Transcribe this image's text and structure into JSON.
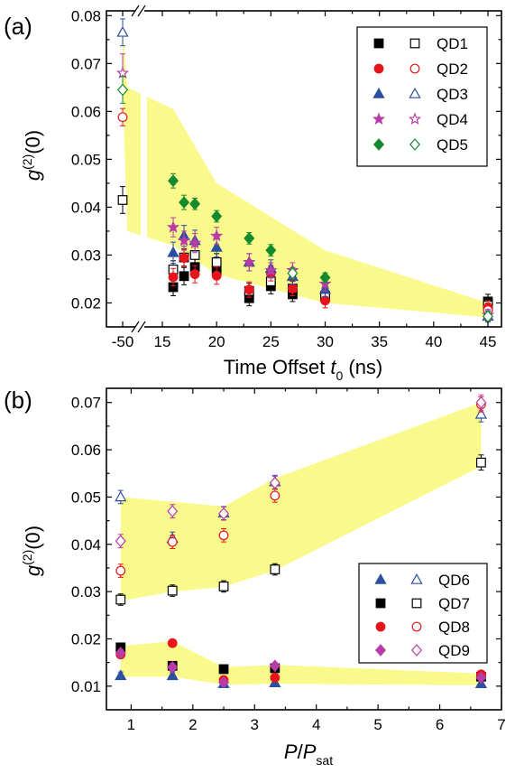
{
  "panels": [
    {
      "panel_label": "(a)",
      "xlabel_main": "Time Offset ",
      "xlabel_var": "t",
      "xlabel_sub": "0",
      "xlabel_unit": " (ns)",
      "ylabel_main": "g",
      "ylabel_sup": "(2)",
      "ylabel_tail": "(0)"
    },
    {
      "panel_label": "(b)",
      "xlabel_var": "P",
      "xlabel_slash": "/",
      "xlabel_var2": "P",
      "xlabel_sub": "sat",
      "ylabel_main": "g",
      "ylabel_sup": "(2)",
      "ylabel_tail": "(0)"
    }
  ],
  "colors": {
    "QD1": "#000000",
    "QD2": "#e8141c",
    "QD3": "#2c4fa0",
    "QD4": "#b83ca6",
    "QD5": "#138a2e",
    "QD6": "#2c4fa0",
    "QD7": "#000000",
    "QD8": "#e8141c",
    "QD9": "#b83ca6",
    "band": "#fafa8c"
  },
  "chart_data": [
    {
      "type": "scatter",
      "panel": "(a)",
      "xlabel": "Time Offset t0 (ns)",
      "ylabel": "g(2)(0)",
      "x_axis_break": "between -50 and 15",
      "xlim": [
        13,
        47
      ],
      "ylim": [
        0.015,
        0.081
      ],
      "xticks": [
        -50,
        15,
        20,
        25,
        30,
        35,
        40,
        45
      ],
      "yticks": [
        0.02,
        0.03,
        0.04,
        0.05,
        0.06,
        0.07,
        0.08
      ],
      "legend": {
        "position": "top-right",
        "columns": [
          "filled",
          "open"
        ]
      },
      "shaded_band": {
        "upper": [
          [
            -50,
            0.077
          ],
          [
            -48,
            0.065
          ],
          [
            16,
            0.0605
          ],
          [
            20,
            0.045
          ],
          [
            30,
            0.031
          ],
          [
            45,
            0.02
          ]
        ],
        "lower": [
          [
            -50,
            0.064
          ],
          [
            -48,
            0.035
          ],
          [
            16,
            0.032
          ],
          [
            20,
            0.026
          ],
          [
            30,
            0.02
          ],
          [
            45,
            0.017
          ]
        ]
      },
      "series": [
        {
          "name": "QD1",
          "marker": "square",
          "filled": true,
          "x": [
            16,
            17,
            18,
            20,
            23,
            25,
            27,
            30,
            45
          ],
          "y": [
            0.0233,
            0.0256,
            0.0275,
            0.0268,
            0.021,
            0.0235,
            0.0218,
            0.0213,
            0.0203
          ],
          "err": [
            0.0018,
            0.0018,
            0.0018,
            0.0018,
            0.0016,
            0.0016,
            0.0015,
            0.0015,
            0.0015
          ]
        },
        {
          "name": "QD1",
          "marker": "square",
          "filled": false,
          "x": [
            -50,
            16,
            17,
            18,
            20,
            23,
            25,
            27,
            30,
            45
          ],
          "y": [
            0.0415,
            0.027,
            0.0295,
            0.03,
            0.0285,
            0.0225,
            0.0245,
            0.023,
            0.0215,
            0.0195
          ],
          "err": [
            0.0028,
            0.0018,
            0.0018,
            0.0018,
            0.0018,
            0.0016,
            0.0016,
            0.0015,
            0.0015,
            0.0015
          ]
        },
        {
          "name": "QD2",
          "marker": "circle",
          "filled": true,
          "x": [
            16,
            17,
            18,
            20,
            23,
            25,
            27,
            30,
            45
          ],
          "y": [
            0.0254,
            0.0294,
            0.026,
            0.0257,
            0.0228,
            0.0262,
            0.023,
            0.0205,
            0.019
          ],
          "err": [
            0.0018,
            0.0018,
            0.0018,
            0.0018,
            0.0016,
            0.0016,
            0.0015,
            0.0015,
            0.0015
          ]
        },
        {
          "name": "QD2",
          "marker": "circle",
          "filled": false,
          "x": [
            -50,
            45
          ],
          "y": [
            0.0588,
            0.0185
          ],
          "err": [
            0.0018,
            0.0015
          ]
        },
        {
          "name": "QD3",
          "marker": "triangle",
          "filled": true,
          "x": [
            16,
            17,
            18,
            20,
            23,
            25,
            27,
            30,
            45
          ],
          "y": [
            0.0305,
            0.034,
            0.033,
            0.0316,
            0.0285,
            0.0272,
            0.0255,
            0.0228,
            0.0172
          ],
          "err": [
            0.0022,
            0.0022,
            0.0022,
            0.002,
            0.0018,
            0.0018,
            0.0016,
            0.0015,
            0.0012
          ]
        },
        {
          "name": "QD3",
          "marker": "triangle",
          "filled": false,
          "x": [
            -50
          ],
          "y": [
            0.0765
          ],
          "err": [
            0.0028
          ]
        },
        {
          "name": "QD4",
          "marker": "star",
          "filled": true,
          "x": [
            16,
            17,
            18,
            20,
            23,
            25,
            27,
            30,
            45
          ],
          "y": [
            0.0358,
            0.033,
            0.0325,
            0.034,
            0.0285,
            0.0268,
            0.0268,
            0.024,
            0.0175
          ],
          "err": [
            0.002,
            0.002,
            0.002,
            0.0018,
            0.0018,
            0.0016,
            0.0016,
            0.0015,
            0.0012
          ]
        },
        {
          "name": "QD4",
          "marker": "star",
          "filled": false,
          "x": [
            -50
          ],
          "y": [
            0.068
          ],
          "err": [
            0.004
          ]
        },
        {
          "name": "QD5",
          "marker": "diamond",
          "filled": true,
          "x": [
            16,
            17,
            18,
            20,
            23,
            25,
            30
          ],
          "y": [
            0.0455,
            0.041,
            0.0407,
            0.0381,
            0.0335,
            0.031,
            0.0253
          ],
          "err": [
            0.0015,
            0.0015,
            0.0012,
            0.0012,
            0.0012,
            0.0012,
            0.001
          ]
        },
        {
          "name": "QD5",
          "marker": "diamond",
          "filled": false,
          "x": [
            -50,
            27,
            45
          ],
          "y": [
            0.0645,
            0.0262,
            0.0172
          ],
          "err": [
            0.0028,
            0.0012,
            0.001
          ]
        }
      ]
    },
    {
      "type": "scatter",
      "panel": "(b)",
      "xlabel": "P/Psat",
      "ylabel": "g(2)(0)",
      "xlim": [
        0.6,
        7
      ],
      "ylim": [
        0.005,
        0.073
      ],
      "xticks": [
        1,
        2,
        3,
        4,
        5,
        6,
        7
      ],
      "yticks": [
        0.01,
        0.02,
        0.03,
        0.04,
        0.05,
        0.06,
        0.07
      ],
      "legend": {
        "position": "bottom-right",
        "columns": [
          "filled",
          "open"
        ]
      },
      "shaded_band": {
        "upper": [
          [
            0.83,
            0.05
          ],
          [
            1.67,
            0.049
          ],
          [
            2.5,
            0.048
          ],
          [
            3.33,
            0.054
          ],
          [
            6.67,
            0.07
          ]
        ],
        "lower": [
          [
            0.83,
            0.028
          ],
          [
            1.67,
            0.03
          ],
          [
            2.5,
            0.031
          ],
          [
            3.33,
            0.0345
          ],
          [
            6.67,
            0.0565
          ]
        ]
      },
      "shaded_band_2": {
        "upper": [
          [
            0.83,
            0.0185
          ],
          [
            1.67,
            0.0195
          ],
          [
            2.5,
            0.014
          ],
          [
            3.33,
            0.0145
          ],
          [
            6.67,
            0.0127
          ]
        ],
        "lower": [
          [
            0.83,
            0.012
          ],
          [
            1.67,
            0.012
          ],
          [
            2.5,
            0.0103
          ],
          [
            3.33,
            0.0105
          ],
          [
            6.67,
            0.0102
          ]
        ]
      },
      "series": [
        {
          "name": "QD6",
          "marker": "triangle",
          "filled": true,
          "x": [
            0.83,
            1.67,
            2.5,
            3.33,
            6.67
          ],
          "y": [
            0.0122,
            0.0122,
            0.0105,
            0.0107,
            0.0105
          ],
          "err": [
            0.0008,
            0.0008,
            0.0006,
            0.0006,
            0.0006
          ]
        },
        {
          "name": "QD6",
          "marker": "triangle",
          "filled": false,
          "x": [
            0.83,
            1.67,
            2.5,
            3.33,
            6.67
          ],
          "y": [
            0.05,
            0.0412,
            0.0466,
            0.0532,
            0.0675
          ],
          "err": [
            0.0014,
            0.0014,
            0.0014,
            0.0014,
            0.0016
          ]
        },
        {
          "name": "QD7",
          "marker": "square",
          "filled": true,
          "x": [
            0.83,
            1.67,
            2.5,
            3.33,
            6.67
          ],
          "y": [
            0.0182,
            0.0143,
            0.0136,
            0.0138,
            0.012
          ],
          "err": [
            0.0008,
            0.0008,
            0.0006,
            0.0006,
            0.0006
          ]
        },
        {
          "name": "QD7",
          "marker": "square",
          "filled": false,
          "x": [
            0.83,
            1.67,
            2.5,
            3.33,
            6.67
          ],
          "y": [
            0.0283,
            0.0302,
            0.0311,
            0.0347,
            0.0573
          ],
          "err": [
            0.0012,
            0.0012,
            0.0012,
            0.0012,
            0.0016
          ]
        },
        {
          "name": "QD8",
          "marker": "circle",
          "filled": true,
          "x": [
            0.83,
            1.67,
            2.5,
            3.33,
            6.67
          ],
          "y": [
            0.0167,
            0.0191,
            0.0113,
            0.0118,
            0.0125
          ],
          "err": [
            0.0008,
            0.0008,
            0.0006,
            0.0006,
            0.0006
          ]
        },
        {
          "name": "QD8",
          "marker": "circle",
          "filled": false,
          "x": [
            0.83,
            1.67,
            2.5,
            3.33,
            6.67
          ],
          "y": [
            0.0344,
            0.0405,
            0.0419,
            0.0503,
            0.0696
          ],
          "err": [
            0.0014,
            0.0014,
            0.0014,
            0.0014,
            0.0016
          ]
        },
        {
          "name": "QD9",
          "marker": "diamond",
          "filled": true,
          "x": [
            0.83,
            1.67,
            2.5,
            3.33,
            6.67
          ],
          "y": [
            0.017,
            0.014,
            0.0108,
            0.0143,
            0.0118
          ],
          "err": [
            0.0008,
            0.0008,
            0.0006,
            0.0006,
            0.0006
          ]
        },
        {
          "name": "QD9",
          "marker": "diamond",
          "filled": false,
          "x": [
            0.83,
            1.67,
            2.5,
            3.33,
            6.67
          ],
          "y": [
            0.0407,
            0.047,
            0.0465,
            0.053,
            0.07
          ],
          "err": [
            0.0014,
            0.0014,
            0.0014,
            0.0014,
            0.0016
          ]
        }
      ]
    }
  ]
}
